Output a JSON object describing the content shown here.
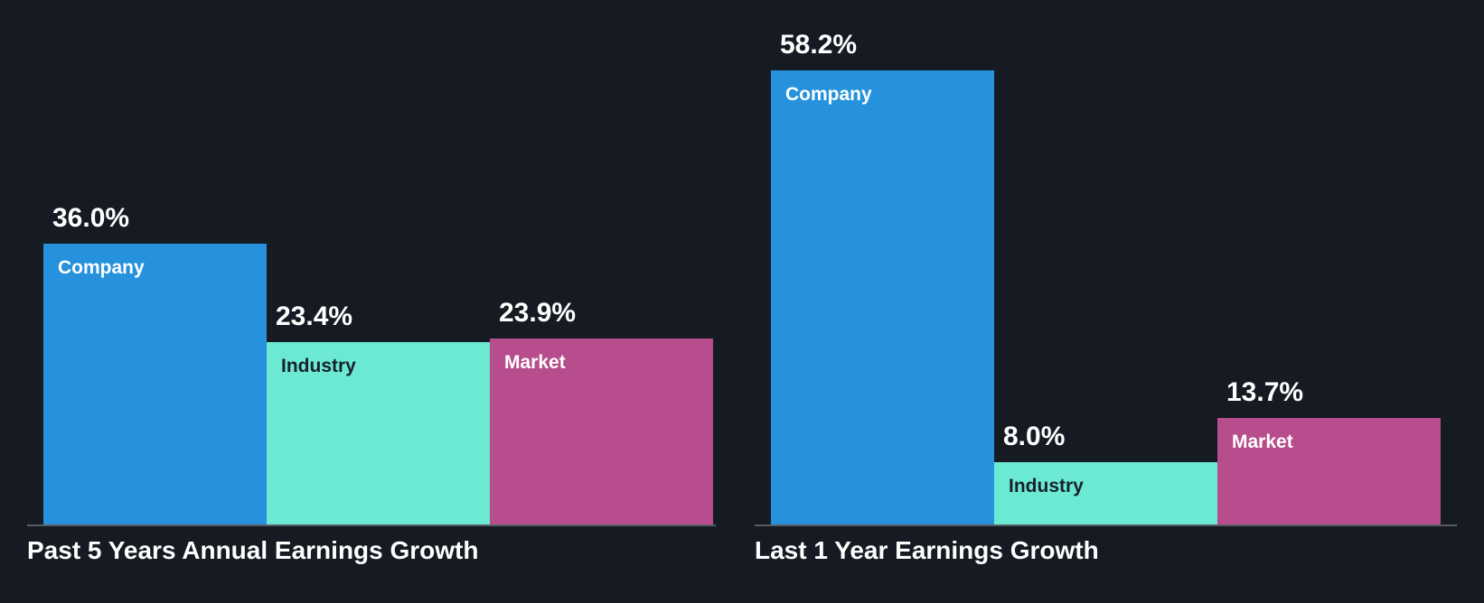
{
  "colors": {
    "background": "#151a23",
    "axis_line": "#585c64",
    "value_label": "#ffffff",
    "title": "#ffffff",
    "series_colors": [
      "#2692dd",
      "#6ce9d2",
      "#b74d8d"
    ],
    "series_label_colors": [
      "#ffffff",
      "#16222c",
      "#ffffff"
    ]
  },
  "chart_data": [
    {
      "type": "bar",
      "title": "Past 5 Years Annual Earnings Growth",
      "categories": [
        "Company",
        "Industry",
        "Market"
      ],
      "values": [
        36.0,
        23.4,
        23.9
      ],
      "value_labels": [
        "36.0%",
        "23.4%",
        "23.9%"
      ],
      "ylim": [
        0,
        60
      ],
      "grid": false,
      "legend": "none"
    },
    {
      "type": "bar",
      "title": "Last 1 Year Earnings Growth",
      "categories": [
        "Company",
        "Industry",
        "Market"
      ],
      "values": [
        58.2,
        8.0,
        13.7
      ],
      "value_labels": [
        "58.2%",
        "8.0%",
        "13.7%"
      ],
      "ylim": [
        0,
        60
      ],
      "grid": false,
      "legend": "none"
    }
  ]
}
